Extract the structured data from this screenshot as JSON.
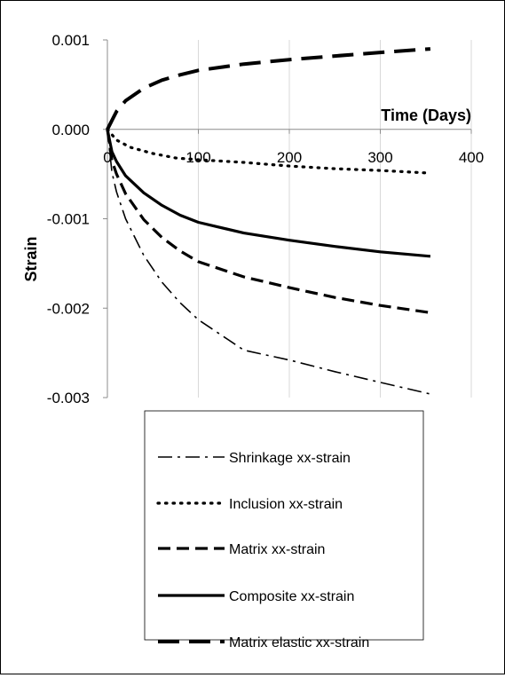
{
  "chart_data": {
    "type": "line",
    "title": "",
    "xlabel": "Time (Days)",
    "ylabel": "Strain",
    "xlim": [
      0,
      400
    ],
    "ylim": [
      -0.003,
      0.001
    ],
    "x_ticks": [
      0,
      100,
      200,
      300,
      400
    ],
    "y_ticks": [
      0.001,
      0.0,
      -0.001,
      -0.002,
      -0.003
    ],
    "x_tick_labels": [
      "0",
      "100",
      "200",
      "300",
      "400"
    ],
    "y_tick_labels": [
      "0.001",
      "0.000",
      "-0.001",
      "-0.002",
      "-0.003"
    ],
    "grid": "vertical",
    "legend_position": "bottom",
    "series": [
      {
        "name": "Shrinkage xx-strain",
        "style": "dash-dot",
        "points": [
          [
            0,
            0
          ],
          [
            5,
            -0.00048
          ],
          [
            10,
            -0.0007
          ],
          [
            20,
            -0.001
          ],
          [
            40,
            -0.00141
          ],
          [
            60,
            -0.00171
          ],
          [
            80,
            -0.00194
          ],
          [
            100,
            -0.00213
          ],
          [
            150,
            -0.00247
          ],
          [
            200,
            -0.00258
          ],
          [
            250,
            -0.00271
          ],
          [
            300,
            -0.00283
          ],
          [
            355,
            -0.00296
          ]
        ]
      },
      {
        "name": "Inclusion xx-strain",
        "style": "dotted",
        "points": [
          [
            0,
            0
          ],
          [
            10,
            -0.00012
          ],
          [
            25,
            -0.0002
          ],
          [
            50,
            -0.00027
          ],
          [
            75,
            -0.00032
          ],
          [
            100,
            -0.00034
          ],
          [
            150,
            -0.00037
          ],
          [
            200,
            -0.00041
          ],
          [
            250,
            -0.00044
          ],
          [
            300,
            -0.00046
          ],
          [
            355,
            -0.00049
          ]
        ]
      },
      {
        "name": "Matrix xx-strain",
        "style": "dashed",
        "points": [
          [
            0,
            0
          ],
          [
            5,
            -0.00035
          ],
          [
            10,
            -0.0005
          ],
          [
            20,
            -0.00072
          ],
          [
            40,
            -0.00101
          ],
          [
            60,
            -0.00121
          ],
          [
            80,
            -0.00136
          ],
          [
            100,
            -0.00148
          ],
          [
            150,
            -0.00165
          ],
          [
            200,
            -0.00177
          ],
          [
            250,
            -0.00188
          ],
          [
            300,
            -0.00197
          ],
          [
            355,
            -0.00205
          ]
        ]
      },
      {
        "name": "Composite xx-strain",
        "style": "solid",
        "points": [
          [
            0,
            0
          ],
          [
            5,
            -0.00025
          ],
          [
            10,
            -0.00036
          ],
          [
            20,
            -0.00052
          ],
          [
            40,
            -0.00071
          ],
          [
            60,
            -0.00085
          ],
          [
            80,
            -0.00096
          ],
          [
            100,
            -0.00104
          ],
          [
            150,
            -0.00116
          ],
          [
            200,
            -0.00124
          ],
          [
            250,
            -0.00131
          ],
          [
            300,
            -0.00137
          ],
          [
            355,
            -0.00142
          ]
        ]
      },
      {
        "name": "Matrix elastic xx-strain",
        "style": "long-dash",
        "points": [
          [
            0,
            0
          ],
          [
            10,
            0.0002
          ],
          [
            20,
            0.00032
          ],
          [
            40,
            0.00046
          ],
          [
            60,
            0.00055
          ],
          [
            80,
            0.00061
          ],
          [
            100,
            0.00066
          ],
          [
            150,
            0.00073
          ],
          [
            200,
            0.00078
          ],
          [
            250,
            0.00082
          ],
          [
            300,
            0.00086
          ],
          [
            355,
            0.0009
          ]
        ]
      }
    ]
  }
}
